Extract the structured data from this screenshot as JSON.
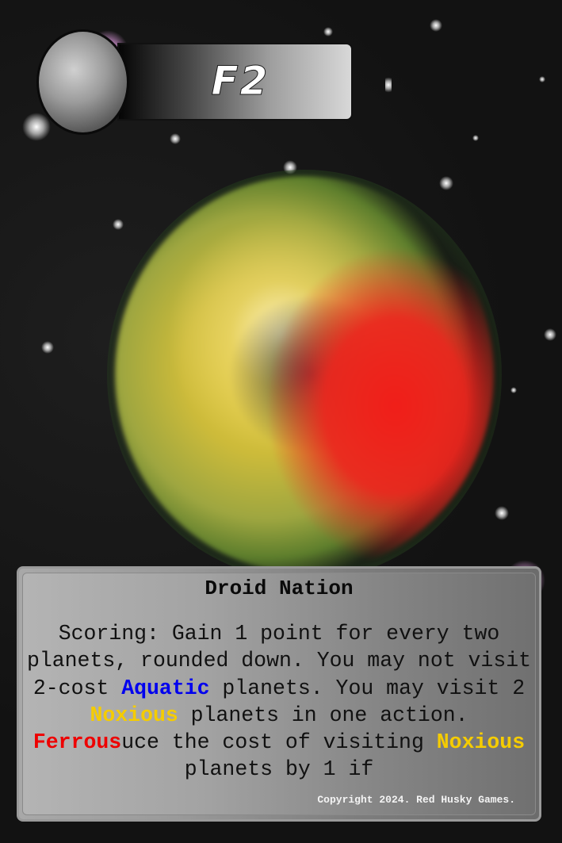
{
  "card": {
    "code": "F2",
    "name": "Droid Nation",
    "rules": [
      {
        "text": "Scoring: Gain 1 point for every two planets, rounded down. You may not visit 2-cost ",
        "color": ""
      },
      {
        "text": "Aquatic",
        "color": "#0000ee"
      },
      {
        "text": " planets. You may visit 2 ",
        "color": ""
      },
      {
        "text": "Noxious",
        "color": "#f5cc00"
      },
      {
        "text": " planets in one action. ",
        "color": ""
      },
      {
        "text": "Ferrous",
        "color": "#ee0000"
      },
      {
        "text": "uce the cost of visiting ",
        "color": ""
      },
      {
        "text": "Noxious",
        "color": "#f5cc00"
      },
      {
        "text": " planets by 1 if",
        "color": ""
      }
    ],
    "copyright": "Copyright 2024. Red Husky Games."
  },
  "colors": {
    "aquatic": "#0000ee",
    "noxious": "#f5cc00",
    "ferrous": "#ee0000",
    "planet_primary": "#e6cb38",
    "planet_secondary": "#ee2620"
  },
  "icons": {
    "orb": "grey-sphere-icon",
    "planet": "planet-illustration"
  }
}
